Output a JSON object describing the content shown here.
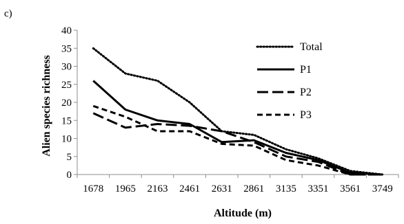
{
  "panel_label": "c)",
  "chart_data": {
    "type": "line",
    "categories": [
      "1678",
      "1965",
      "2163",
      "2461",
      "2631",
      "2861",
      "3135",
      "3351",
      "3561",
      "3749"
    ],
    "ylabel": "Alien species richness",
    "xlabel": "Altitude (m)",
    "ylim": [
      0,
      40
    ],
    "yticks": [
      0,
      5,
      10,
      15,
      20,
      25,
      30,
      35,
      40
    ],
    "grid": false,
    "legend_position": "top-right",
    "series": [
      {
        "name": "Total",
        "values": [
          35,
          28,
          26,
          20,
          12,
          11,
          7,
          4.5,
          1,
          0
        ],
        "style": "dotted",
        "color": "#000000"
      },
      {
        "name": "P1",
        "values": [
          26,
          18,
          15,
          14,
          9,
          9.5,
          6,
          4,
          0.5,
          0
        ],
        "style": "solid",
        "color": "#000000"
      },
      {
        "name": "P2",
        "values": [
          17,
          13,
          14,
          13.5,
          12,
          9,
          5,
          3.5,
          0,
          0
        ],
        "style": "longdash",
        "color": "#000000"
      },
      {
        "name": "P3",
        "values": [
          19,
          16,
          12,
          12,
          8.5,
          8,
          4,
          2.5,
          0,
          0
        ],
        "style": "dashed",
        "color": "#000000"
      }
    ]
  }
}
